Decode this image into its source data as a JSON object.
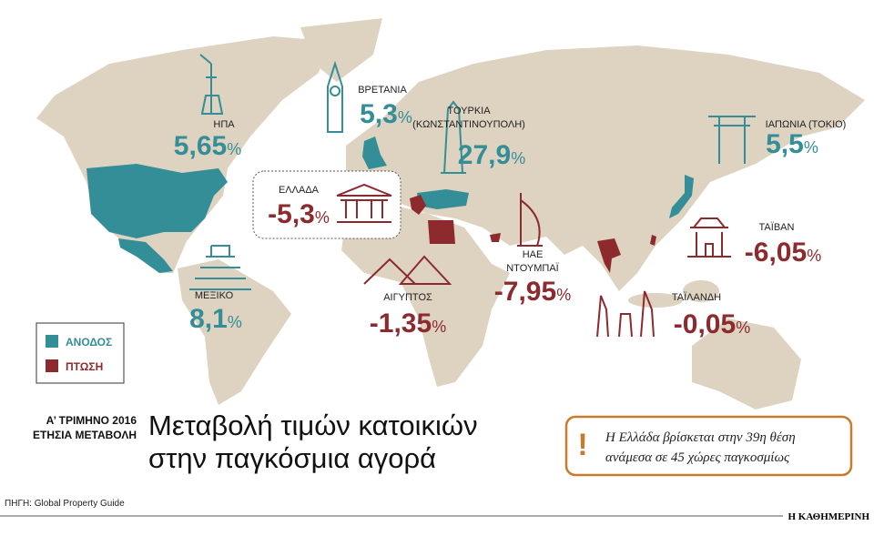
{
  "header": {
    "period_lines": [
      "Α’ ΤΡΙΜΗΝΟ 2016",
      "ΕΤΗΣΙΑ ΜΕΤΑΒΟΛΗ"
    ],
    "title_lines": [
      "Μεταβολή τιμών κατοικιών",
      "στην παγκόσμια αγορά"
    ]
  },
  "legend": [
    {
      "label": "ΑΝΟΔΟΣ",
      "color": "#348e97"
    },
    {
      "label": "ΠΤΩΣΗ",
      "color": "#8c2a2d"
    }
  ],
  "countries": [
    {
      "name_lines": [
        "ΗΠΑ"
      ],
      "value": "5,65",
      "unit": "%",
      "color": "#348e97"
    },
    {
      "name_lines": [
        "ΒΡΕΤΑΝΙΑ"
      ],
      "value": "5,3",
      "unit": "%",
      "color": "#348e97"
    },
    {
      "name_lines": [
        "ΤΟΥΡΚΙΑ",
        "(ΚΩΝΣΤΑΝΤΙΝΟΥΠΟΛΗ)"
      ],
      "value": "27,9",
      "unit": "%",
      "color": "#348e97"
    },
    {
      "name_lines": [
        "ΙΑΠΩΝΙΑ (ΤΟΚΙΟ)"
      ],
      "value": "5,5",
      "unit": "%",
      "color": "#348e97"
    },
    {
      "name_lines": [
        "ΕΛΛΑΔΑ"
      ],
      "value": "-5,3",
      "unit": "%",
      "color": "#8c2a2d"
    },
    {
      "name_lines": [
        "ΤΑΪΒΑΝ"
      ],
      "value": "-6,05",
      "unit": "%",
      "color": "#8c2a2d"
    },
    {
      "name_lines": [
        "ΗΑΕ",
        "ΝΤΟΥΜΠΑΪ"
      ],
      "value": "-7,95",
      "unit": "%",
      "color": "#8c2a2d"
    },
    {
      "name_lines": [
        "ΑΙΓΥΠΤΟΣ"
      ],
      "value": "-1,35",
      "unit": "%",
      "color": "#8c2a2d"
    },
    {
      "name_lines": [
        "ΤΑΪΛΑΝΔΗ"
      ],
      "value": "-0,05",
      "unit": "%",
      "color": "#8c2a2d"
    },
    {
      "name_lines": [
        "ΜΕΞΙΚΟ"
      ],
      "value": "8,1",
      "unit": "%",
      "color": "#348e97"
    }
  ],
  "note": {
    "mark": "!",
    "lines": [
      "Η Ελλάδα βρίσκεται στην 39η θέση",
      "ανάμεσα σε 45 χώρες παγκοσμίως"
    ]
  },
  "source": "ΠΗΓΗ: Global Property Guide",
  "publisher": "Η ΚΑΘΗΜΕΡΙΝΗ"
}
